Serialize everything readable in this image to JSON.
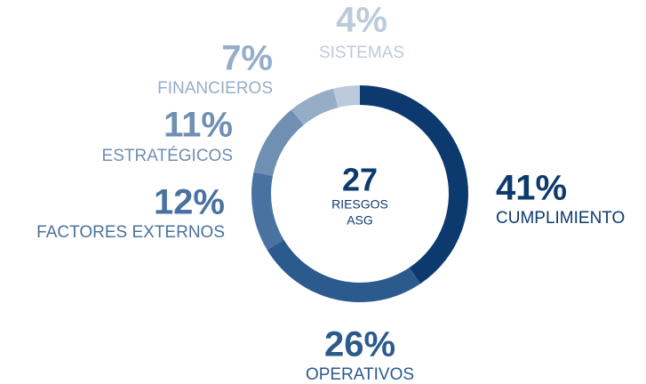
{
  "chart_data": {
    "type": "pie",
    "donut": true,
    "categories": [
      "CUMPLIMIENTO",
      "OPERATIVOS",
      "FACTORES EXTERNOS",
      "ESTRATÉGICOS",
      "FINANCIEROS",
      "SISTEMAS"
    ],
    "values": [
      41,
      26,
      12,
      11,
      7,
      4
    ],
    "value_labels": [
      "41%",
      "26%",
      "12%",
      "11%",
      "7%",
      "4%"
    ],
    "colors": [
      "#0d3a6e",
      "#2b5a8c",
      "#4a72a0",
      "#6f8fb3",
      "#96adc8",
      "#bccbdb"
    ],
    "center_value": 27,
    "center_labels": [
      "RIESGOS",
      "ASG"
    ]
  }
}
